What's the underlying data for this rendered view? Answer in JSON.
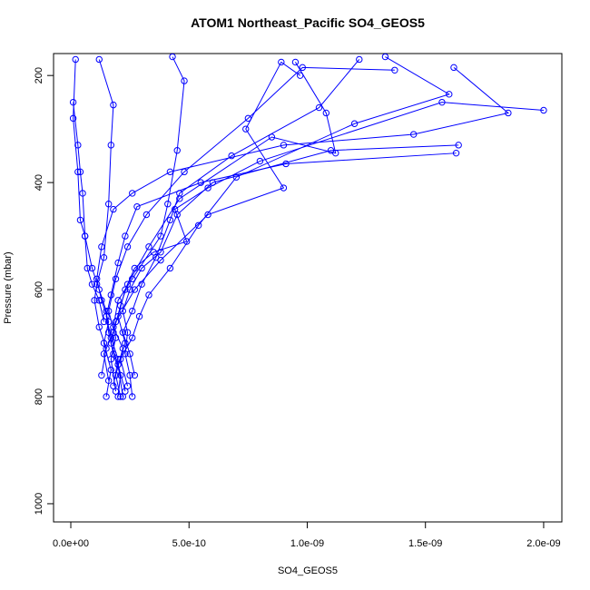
{
  "chart_data": {
    "type": "profile-line",
    "title": "ATOM1 Northeast_Pacific SO4_GEOS5",
    "x_label": "SO4_GEOS5",
    "y_label": "Pressure (mbar)",
    "color": "#0000ff",
    "xlim": [
      -7.3e-11,
      2.077e-09
    ],
    "ylim": [
      1034,
      159
    ],
    "xticks": [
      {
        "value": 0,
        "label": "0.0e+00"
      },
      {
        "value": 5e-10,
        "label": "5.0e-10"
      },
      {
        "value": 1e-09,
        "label": "1.0e-09"
      },
      {
        "value": 1.5e-09,
        "label": "1.5e-09"
      },
      {
        "value": 2e-09,
        "label": "2.0e-09"
      }
    ],
    "yticks": [
      200,
      400,
      600,
      800,
      1000
    ],
    "profiles": [
      {
        "x": [
          2e-10,
          2.1e-10,
          1.8e-10,
          1.6e-10,
          1.5e-10,
          1.2e-10,
          9e-11,
          6e-11,
          4e-11,
          3e-11,
          1e-11,
          2e-11
        ],
        "y": [
          800,
          760,
          720,
          680,
          640,
          600,
          560,
          500,
          470,
          380,
          280,
          170
        ]
      },
      {
        "x": [
          2.6e-10,
          2.5e-10,
          2.3e-10,
          2.4e-10,
          2.2e-10,
          2.5e-10,
          3e-10,
          3.8e-10,
          4.5e-10,
          6e-10,
          1.1e-09,
          1.64e-09
        ],
        "y": [
          800,
          760,
          720,
          680,
          640,
          600,
          560,
          530,
          460,
          400,
          340,
          330
        ]
      },
      {
        "x": [
          1.5e-10,
          1.7e-10,
          1.4e-10,
          1.6e-10,
          1.3e-10,
          1.1e-10,
          1.3e-10,
          1.8e-10,
          2.6e-10,
          4.2e-10,
          9e-10,
          1.45e-09,
          1.85e-09,
          1.62e-09
        ],
        "y": [
          800,
          750,
          700,
          660,
          620,
          580,
          520,
          450,
          420,
          380,
          330,
          310,
          270,
          185
        ]
      },
      {
        "x": [
          2.2e-10,
          2e-10,
          2.3e-10,
          2e-10,
          2.3e-10,
          2.7e-10,
          3.5e-10,
          4.9e-10,
          4.4e-10,
          5.8e-10,
          8e-10,
          1.57e-09,
          2e-09
        ],
        "y": [
          800,
          740,
          700,
          650,
          600,
          560,
          530,
          510,
          450,
          410,
          360,
          250,
          265
        ]
      },
      {
        "x": [
          1.9e-10,
          1.7e-10,
          1.9e-10,
          1.6e-10,
          1.9e-10,
          2.4e-10,
          3.2e-10,
          4.8e-10,
          7.5e-10,
          9.8e-10,
          1.37e-09
        ],
        "y": [
          790,
          730,
          690,
          640,
          580,
          520,
          460,
          380,
          280,
          185,
          190
        ]
      },
      {
        "x": [
          2.4e-10,
          2.1e-10,
          2.6e-10,
          2.9e-10,
          3.3e-10,
          4.2e-10,
          5.4e-10,
          7e-10,
          1.2e-09,
          1.6e-09,
          1.33e-09
        ],
        "y": [
          780,
          730,
          690,
          650,
          610,
          560,
          480,
          390,
          290,
          235,
          165
        ]
      },
      {
        "x": [
          1.3e-10,
          1.5e-10,
          1.2e-10,
          1e-10,
          1.1e-10,
          1.4e-10,
          1.6e-10,
          1.7e-10,
          1.8e-10,
          1.2e-10
        ],
        "y": [
          760,
          710,
          670,
          620,
          590,
          540,
          440,
          330,
          255,
          170
        ]
      },
      {
        "x": [
          2.7e-10,
          2.5e-10,
          2.2e-10,
          2.6e-10,
          3e-10,
          3.6e-10,
          4.2e-10,
          4.6e-10,
          6.8e-10,
          1.05e-09,
          1.22e-09
        ],
        "y": [
          760,
          720,
          680,
          640,
          590,
          540,
          470,
          420,
          350,
          260,
          170
        ]
      },
      {
        "x": [
          1.8e-10,
          2e-10,
          1.7e-10,
          1.5e-10,
          1.7e-10,
          2e-10,
          2.3e-10,
          2.8e-10,
          5.5e-10,
          9.1e-10,
          1.63e-09
        ],
        "y": [
          780,
          730,
          690,
          650,
          610,
          550,
          500,
          445,
          400,
          365,
          345
        ]
      },
      {
        "x": [
          2.1e-10,
          1.9e-10,
          2.2e-10,
          1.8e-10,
          2e-10,
          2.6e-10,
          3.8e-10,
          4.1e-10,
          4.5e-10,
          4.8e-10,
          4.3e-10
        ],
        "y": [
          800,
          760,
          710,
          670,
          620,
          580,
          500,
          440,
          340,
          210,
          165
        ]
      },
      {
        "x": [
          1.6e-10,
          1.4e-10,
          1.8e-10,
          2.1e-10,
          2.4e-10,
          3.3e-10,
          4.6e-10,
          8.5e-10,
          1.12e-09,
          1.08e-09,
          9.5e-10
        ],
        "y": [
          770,
          720,
          680,
          630,
          590,
          520,
          430,
          315,
          345,
          270,
          175
        ]
      },
      {
        "x": [
          2.3e-10,
          2e-10,
          1.7e-10,
          1.9e-10,
          2.7e-10,
          3.8e-10,
          5.8e-10,
          9e-10,
          7.4e-10,
          8.9e-10,
          9.7e-10
        ],
        "y": [
          790,
          740,
          700,
          660,
          600,
          545,
          460,
          410,
          300,
          175,
          200
        ]
      },
      {
        "x": [
          1.4e-10,
          1.2e-10,
          9e-11,
          7e-11,
          6e-11,
          5e-11,
          4e-11,
          3e-11,
          1e-11
        ],
        "y": [
          660,
          620,
          590,
          560,
          500,
          420,
          380,
          330,
          250
        ]
      }
    ]
  }
}
